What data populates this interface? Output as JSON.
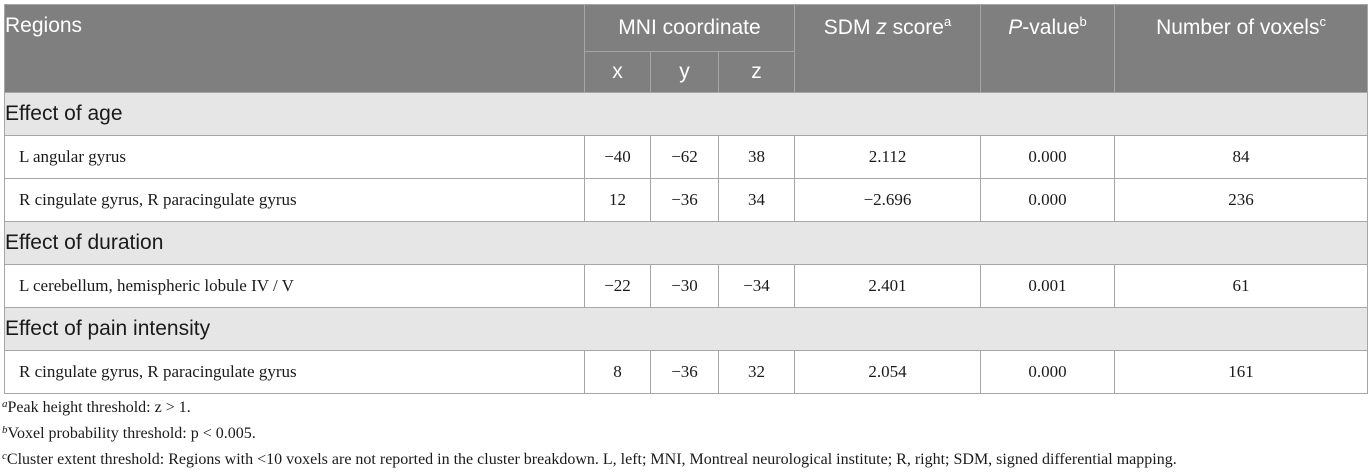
{
  "header": {
    "regions": "Regions",
    "mni": "MNI coordinate",
    "x": "x",
    "y": "y",
    "z": "z",
    "sdm_prefix": "SDM ",
    "sdm_italic": "z",
    "sdm_suffix": " score",
    "sdm_sup": "a",
    "p_italic": "P",
    "p_suffix": "-value",
    "p_sup": "b",
    "voxels": "Number of voxels",
    "voxels_sup": "c"
  },
  "sections": [
    {
      "title": "Effect of age",
      "rows": [
        {
          "region": "L angular gyrus",
          "x": "−40",
          "y": "−62",
          "z": "38",
          "sdm": "2.112",
          "p": "0.000",
          "voxels": "84"
        },
        {
          "region": "R cingulate gyrus, R paracingulate gyrus",
          "x": "12",
          "y": "−36",
          "z": "34",
          "sdm": "−2.696",
          "p": "0.000",
          "voxels": "236"
        }
      ]
    },
    {
      "title": "Effect of duration",
      "rows": [
        {
          "region": "L cerebellum, hemispheric lobule IV / V",
          "x": "−22",
          "y": "−30",
          "z": "−34",
          "sdm": "2.401",
          "p": "0.001",
          "voxels": "61"
        }
      ]
    },
    {
      "title": "Effect of pain intensity",
      "rows": [
        {
          "region": "R cingulate gyrus, R paracingulate gyrus",
          "x": "8",
          "y": "−36",
          "z": "32",
          "sdm": "2.054",
          "p": "0.000",
          "voxels": "161"
        }
      ]
    }
  ],
  "footnotes": [
    {
      "mark": "a",
      "text": "Peak height threshold: z > 1."
    },
    {
      "mark": "b",
      "text": "Voxel probability threshold: p < 0.005."
    },
    {
      "mark": "c",
      "text": "Cluster extent threshold: Regions with <10 voxels are not reported in the cluster breakdown. L, left; MNI, Montreal neurological institute; R, right; SDM, signed differential mapping."
    }
  ]
}
